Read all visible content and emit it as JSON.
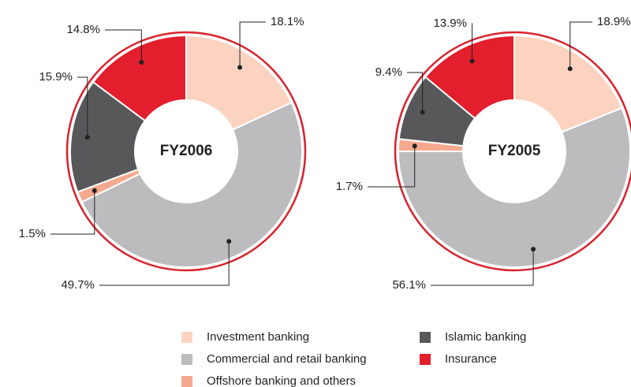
{
  "chart_data": [
    {
      "type": "pie",
      "title": "FY2006",
      "categories": [
        "Investment banking",
        "Commercial and retail banking",
        "Offshore banking and others",
        "Islamic banking",
        "Insurance"
      ],
      "values": [
        18.1,
        49.7,
        1.5,
        15.9,
        14.8
      ],
      "value_labels": [
        "18.1%",
        "49.7%",
        "1.5%",
        "15.9%",
        "14.8%"
      ],
      "colors": [
        "#fcd3c1",
        "#bcbcbe",
        "#f4a98f",
        "#58585a",
        "#e31e2d"
      ]
    },
    {
      "type": "pie",
      "title": "FY2005",
      "categories": [
        "Investment banking",
        "Commercial and retail banking",
        "Offshore banking and others",
        "Islamic banking",
        "Insurance"
      ],
      "values": [
        18.9,
        56.1,
        1.7,
        9.4,
        13.9
      ],
      "value_labels": [
        "18.9%",
        "56.1%",
        "1.7%",
        "9.4%",
        "13.9%"
      ],
      "colors": [
        "#fcd3c1",
        "#bcbcbe",
        "#f4a98f",
        "#58585a",
        "#e31e2d"
      ]
    }
  ]
}
